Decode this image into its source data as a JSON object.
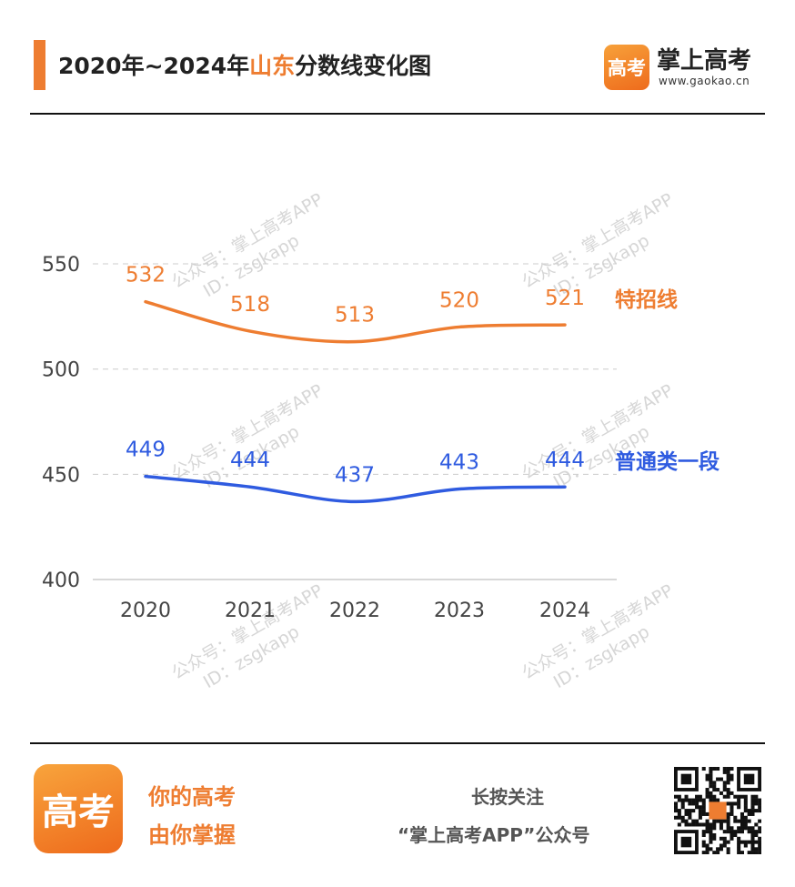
{
  "header": {
    "title_pre": "2020年~2024年",
    "title_highlight": "山东",
    "title_post": "分数线变化图",
    "brand_logo_text": "高考",
    "brand_name": "掌上高考",
    "brand_url": "www.gaokao.cn"
  },
  "watermark": {
    "line1": "公众号：掌上高考APP",
    "line2": "ID：zsgkapp"
  },
  "colors": {
    "accent": "#ee7d31",
    "series_orange": "#ee7d31",
    "series_blue": "#2f5be0",
    "grid": "#cccccc",
    "axis_text": "#444444"
  },
  "chart_data": {
    "type": "line",
    "title": "2020年~2024年山东分数线变化图",
    "x": [
      "2020",
      "2021",
      "2022",
      "2023",
      "2024"
    ],
    "ylim": [
      400,
      550
    ],
    "yticks": [
      400,
      450,
      500,
      550
    ],
    "grid": true,
    "legend": "right, inline labels at line ends",
    "series": [
      {
        "name": "特招线",
        "values": [
          532,
          518,
          513,
          520,
          521
        ],
        "color": "#ee7d31"
      },
      {
        "name": "普通类一段",
        "values": [
          449,
          444,
          437,
          443,
          444
        ],
        "color": "#2f5be0"
      }
    ]
  },
  "footer": {
    "logo_text": "高考",
    "slogan_line1": "你的高考",
    "slogan_line2": "由你掌握",
    "follow_line1": "长按关注",
    "follow_line2": "“掌上高考APP”公众号"
  }
}
